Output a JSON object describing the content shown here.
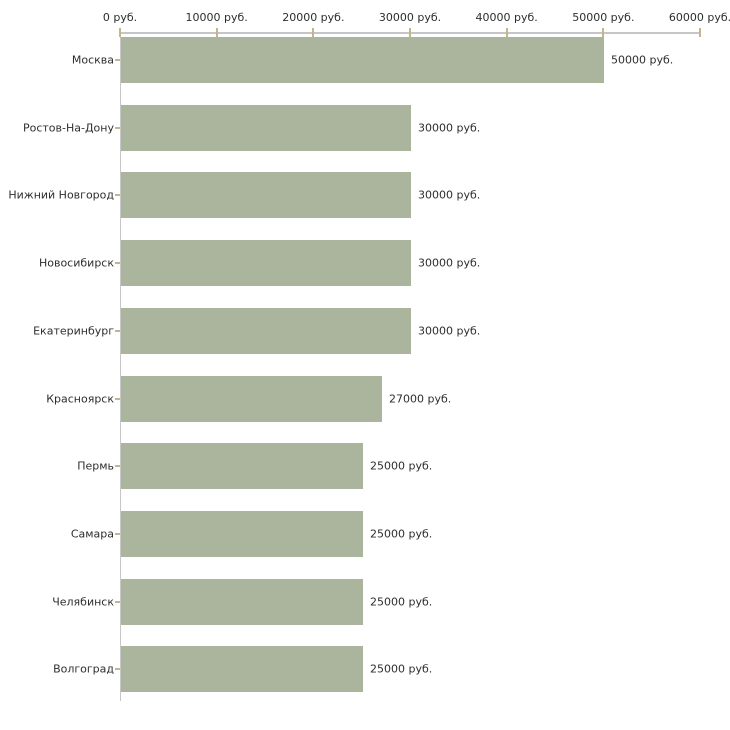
{
  "chart_data": {
    "type": "bar",
    "orientation": "horizontal",
    "title": "",
    "unit": "руб.",
    "categories": [
      "Москва",
      "Ростов-На-Дону",
      "Нижний Новгород",
      "Новосибирск",
      "Екатеринбург",
      "Красноярск",
      "Пермь",
      "Самара",
      "Челябинск",
      "Волгоград"
    ],
    "values": [
      50000,
      30000,
      30000,
      30000,
      30000,
      27000,
      25000,
      25000,
      25000,
      25000
    ],
    "value_labels": [
      "50000 руб.",
      "30000 руб.",
      "30000 руб.",
      "30000 руб.",
      "30000 руб.",
      "27000 руб.",
      "25000 руб.",
      "25000 руб.",
      "25000 руб.",
      "25000 руб."
    ],
    "x_axis": {
      "position": "top",
      "min": 0,
      "max": 60000,
      "tick_values": [
        0,
        10000,
        20000,
        30000,
        40000,
        50000,
        60000
      ],
      "tick_labels": [
        "0 руб.",
        "10000 руб.",
        "20000 руб.",
        "30000 руб.",
        "40000 руб.",
        "50000 руб.",
        "60000 руб."
      ]
    },
    "grid": false,
    "legend": false,
    "colors": {
      "bar": "#abb49c",
      "axis_line": "#c6c6c6",
      "tick_mark": "#c4b58c",
      "text": "#2e2e2e",
      "background": "#ffffff"
    }
  }
}
